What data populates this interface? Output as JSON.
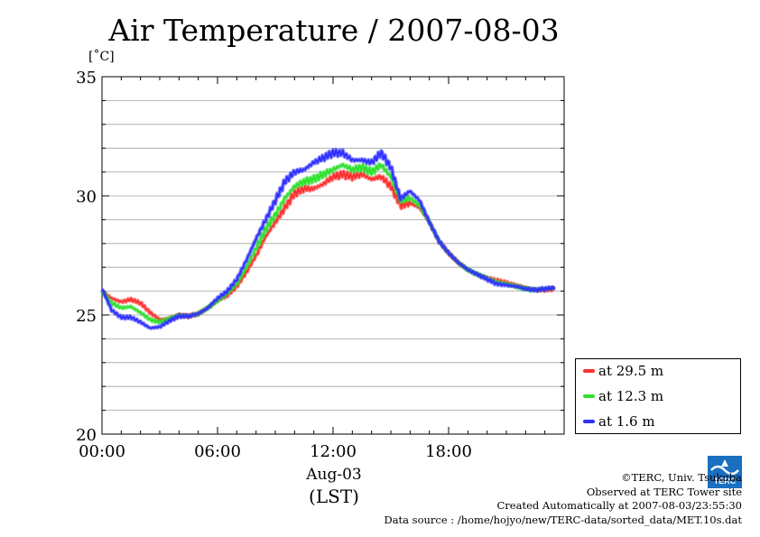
{
  "chart_data": {
    "type": "line",
    "title": "Air Temperature / 2007-08-03",
    "ylabel": "[˚C]",
    "xlabel_date": "Aug-03",
    "xlabel_tz": "(LST)",
    "xlim": [
      0,
      24
    ],
    "ylim": [
      20,
      35
    ],
    "x_ticks": [
      0,
      6,
      12,
      18
    ],
    "x_tick_labels": [
      "00:00",
      "06:00",
      "12:00",
      "18:00"
    ],
    "y_ticks": [
      20,
      25,
      30,
      35
    ],
    "y_tick_labels": [
      "20",
      "25",
      "30",
      "35"
    ],
    "y_minor_step": 1,
    "x_minor_step": 1,
    "grid": true,
    "legend_position": "lower-right-outside",
    "x_hours": [
      0,
      0.5,
      1,
      1.5,
      2,
      2.5,
      3,
      3.5,
      4,
      4.5,
      5,
      5.5,
      6,
      6.5,
      7,
      7.5,
      8,
      8.5,
      9,
      9.5,
      10,
      10.5,
      11,
      11.5,
      12,
      12.5,
      13,
      13.5,
      14,
      14.5,
      15,
      15.5,
      16,
      16.5,
      17,
      17.5,
      18,
      18.5,
      19,
      19.5,
      20,
      20.5,
      21,
      21.5,
      22,
      22.5,
      23,
      23.5
    ],
    "series": [
      {
        "name": "at 29.5 m",
        "color": "#ff3030",
        "values": [
          26.0,
          25.7,
          25.55,
          25.65,
          25.5,
          25.1,
          24.8,
          24.85,
          25.0,
          24.95,
          25.05,
          25.3,
          25.6,
          25.8,
          26.2,
          26.8,
          27.5,
          28.3,
          28.9,
          29.5,
          30.1,
          30.3,
          30.3,
          30.5,
          30.8,
          30.9,
          30.8,
          30.9,
          30.7,
          30.8,
          30.4,
          29.6,
          29.7,
          29.5,
          28.9,
          28.1,
          27.6,
          27.2,
          26.9,
          26.7,
          26.55,
          26.45,
          26.35,
          26.25,
          26.15,
          26.05,
          26.05,
          26.1
        ]
      },
      {
        "name": "at 12.3 m",
        "color": "#30e030",
        "values": [
          26.0,
          25.5,
          25.3,
          25.35,
          25.1,
          24.8,
          24.7,
          24.85,
          25.0,
          24.95,
          25.05,
          25.3,
          25.6,
          25.9,
          26.3,
          27.0,
          27.8,
          28.6,
          29.2,
          29.9,
          30.4,
          30.6,
          30.7,
          30.9,
          31.1,
          31.3,
          31.1,
          31.2,
          31.0,
          31.3,
          30.8,
          29.8,
          29.9,
          29.6,
          28.9,
          28.1,
          27.6,
          27.2,
          26.9,
          26.7,
          26.55,
          26.4,
          26.3,
          26.2,
          26.1,
          26.05,
          26.1,
          26.15
        ]
      },
      {
        "name": "at 1.6 m",
        "color": "#3030ff",
        "values": [
          26.1,
          25.2,
          24.9,
          24.9,
          24.7,
          24.45,
          24.5,
          24.75,
          24.95,
          24.95,
          25.05,
          25.3,
          25.7,
          26.0,
          26.5,
          27.3,
          28.2,
          29.0,
          29.8,
          30.6,
          31.0,
          31.1,
          31.4,
          31.6,
          31.8,
          31.8,
          31.5,
          31.5,
          31.4,
          31.8,
          31.2,
          29.9,
          30.2,
          29.8,
          28.9,
          28.1,
          27.6,
          27.2,
          26.9,
          26.7,
          26.5,
          26.3,
          26.25,
          26.2,
          26.1,
          26.05,
          26.1,
          26.15
        ]
      }
    ]
  },
  "credits": {
    "copyright": "©TERC, Univ. Tsukuba",
    "site": "Observed at TERC Tower site",
    "created": "Created Automatically at 2007-08-03/23:55:30",
    "source": "Data source : /home/hojyo/new/TERC-data/sorted_data/MET.10s.dat"
  },
  "logo": {
    "text": "TERC",
    "color": "#1a6fc0",
    "icon": "terc-logo-icon"
  }
}
